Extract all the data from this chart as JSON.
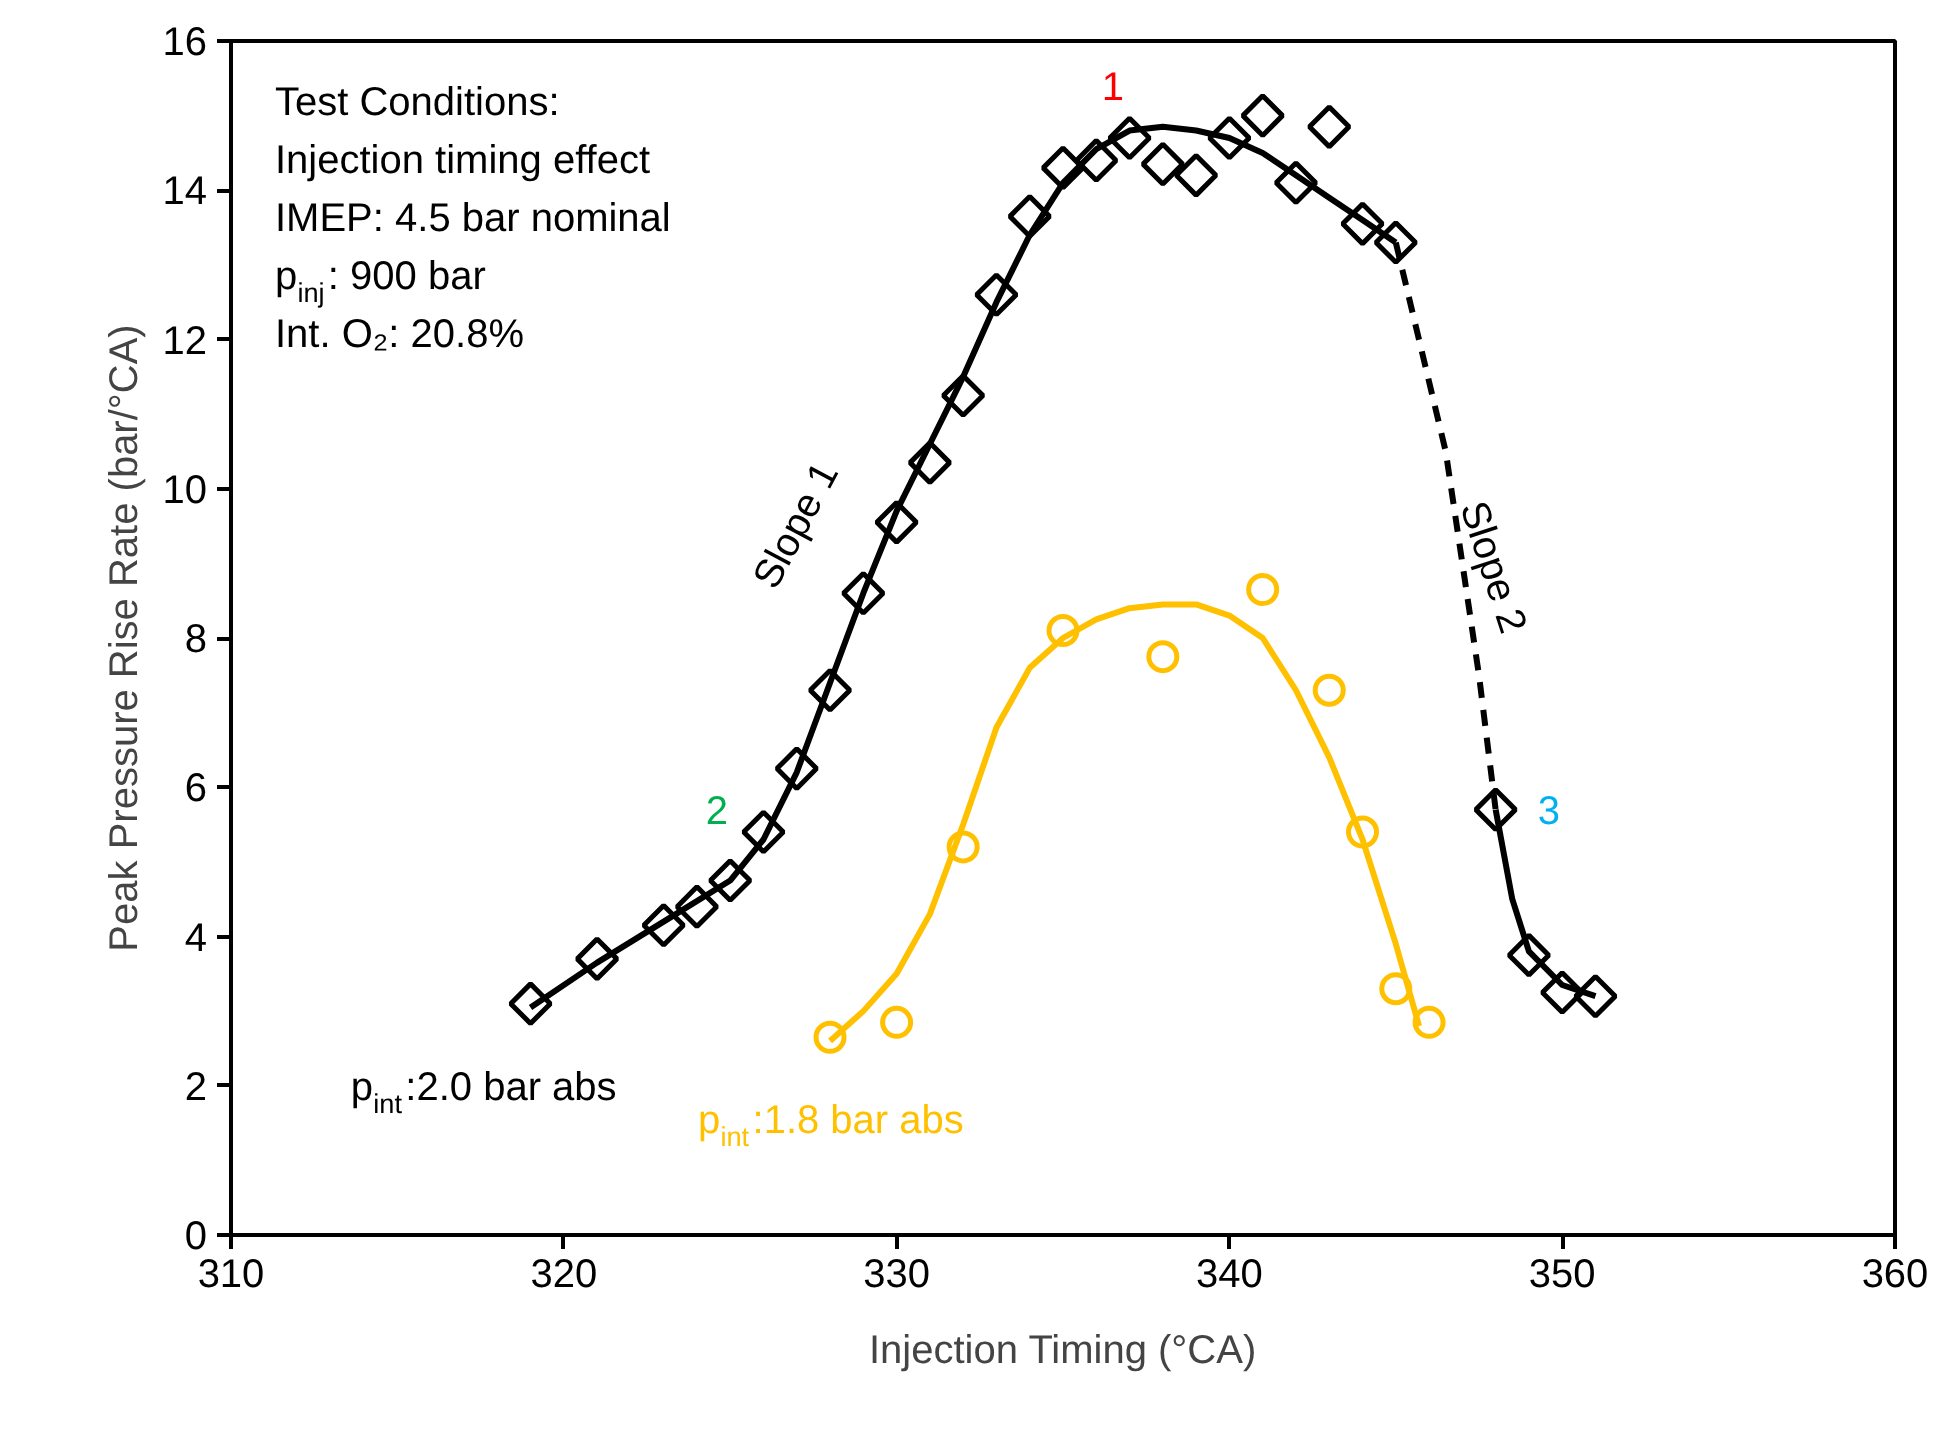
{
  "chart_data": {
    "type": "scatter",
    "xlabel": "Injection Timing (°CA)",
    "ylabel": "Peak Pressure Rise Rate (bar/°CA)",
    "xlim": [
      310,
      360
    ],
    "xticks": [
      310,
      320,
      330,
      340,
      350,
      360
    ],
    "ylim": [
      0,
      16
    ],
    "yticks": [
      0,
      2,
      4,
      6,
      8,
      10,
      12,
      14,
      16
    ],
    "grid": false,
    "series": [
      {
        "name": "p$_{int}$:2.0 bar abs",
        "marker": "diamond",
        "color": "#000000",
        "x": [
          319,
          321,
          323,
          324,
          325,
          326,
          327,
          328,
          329,
          330,
          331,
          332,
          333,
          334,
          335,
          336,
          337,
          338,
          339,
          340,
          341,
          342,
          343,
          344,
          345,
          348,
          349,
          350,
          351
        ],
        "values": [
          3.1,
          3.7,
          4.15,
          4.4,
          4.75,
          5.4,
          6.25,
          7.3,
          8.6,
          9.55,
          10.35,
          11.25,
          12.6,
          13.65,
          14.3,
          14.4,
          14.7,
          14.35,
          14.2,
          14.7,
          15.0,
          14.1,
          14.85,
          13.55,
          13.3,
          5.7,
          3.75,
          3.25,
          3.2
        ]
      },
      {
        "name": "p$_{int}$:1.8 bar abs",
        "marker": "circle",
        "color": "#ffc000",
        "x": [
          328,
          330,
          332,
          335,
          338,
          341,
          343,
          344,
          345,
          346
        ],
        "values": [
          2.65,
          2.85,
          5.2,
          8.1,
          7.75,
          8.65,
          7.3,
          5.4,
          3.3,
          2.85
        ]
      },
      {
        "type": "line",
        "line_style": "solid",
        "color": "#000000",
        "x": [
          319,
          321,
          323,
          325,
          326,
          327,
          328,
          329,
          330,
          331,
          332,
          333,
          334,
          335,
          336,
          337,
          338,
          339,
          340,
          341,
          342,
          343,
          344,
          345
        ],
        "values": [
          3.05,
          3.65,
          4.2,
          4.75,
          5.3,
          6.2,
          7.4,
          8.6,
          9.7,
          10.6,
          11.5,
          12.5,
          13.4,
          14.1,
          14.55,
          14.8,
          14.85,
          14.8,
          14.7,
          14.5,
          14.2,
          13.9,
          13.6,
          13.3
        ]
      },
      {
        "type": "line",
        "line_style": "dashed",
        "color": "#000000",
        "x": [
          345,
          346.5,
          347.5,
          348
        ],
        "values": [
          13.3,
          10.5,
          7.5,
          5.7
        ]
      },
      {
        "type": "line",
        "line_style": "solid",
        "color": "#000000",
        "x": [
          348,
          348.5,
          349,
          350,
          351
        ],
        "values": [
          5.7,
          4.5,
          3.8,
          3.35,
          3.2
        ]
      },
      {
        "type": "line",
        "line_style": "solid",
        "color": "#ffc000",
        "x": [
          328,
          329,
          330,
          331,
          332,
          333,
          334,
          335,
          336,
          337,
          338,
          339,
          340,
          341,
          342,
          343,
          344,
          345,
          345.7
        ],
        "values": [
          2.6,
          3.0,
          3.5,
          4.3,
          5.5,
          6.8,
          7.6,
          8.0,
          8.25,
          8.4,
          8.45,
          8.45,
          8.3,
          8.0,
          7.3,
          6.4,
          5.3,
          3.9,
          2.8
        ]
      }
    ],
    "annotations": [
      "Test Conditions:",
      "Injection timing effect",
      "IMEP: 4.5 bar nominal",
      "p$_{inj}$: 900 bar",
      "Int. O₂: 20.8%",
      "Slope 1",
      "Slope 2",
      "1",
      "2",
      "3"
    ]
  }
}
